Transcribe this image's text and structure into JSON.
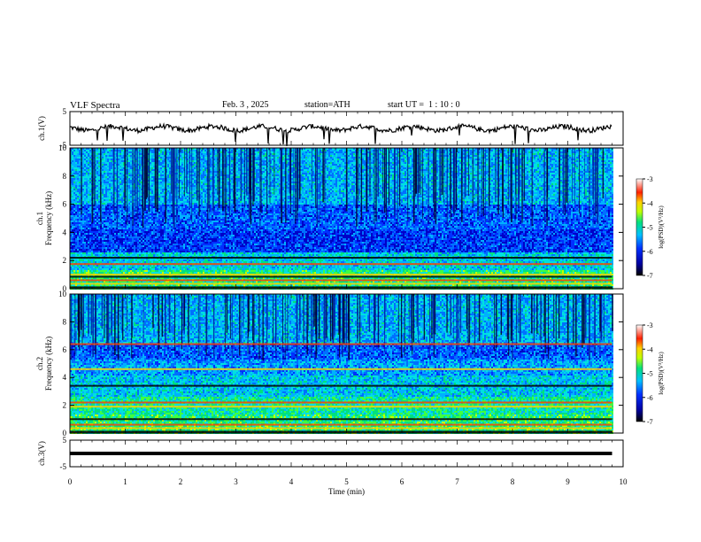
{
  "header": {
    "title": "VLF Spectra",
    "date": "Feb. 3 , 2025",
    "station": "station=ATH",
    "start_ut": "start UT =  1 : 10 : 0"
  },
  "chart_data": [
    {
      "type": "line",
      "name": "ch1-waveform",
      "ylabel": "ch.1(V)",
      "ylim": [
        -5,
        5
      ],
      "yticks": [
        "5",
        "-5"
      ],
      "xlim": [
        0,
        10
      ],
      "approx_level": 0,
      "data_end_min": 9.8
    },
    {
      "type": "heatmap",
      "name": "ch1-spectrogram",
      "ylabel": "ch.1\nFrequency (kHz)",
      "ylim": [
        0,
        10
      ],
      "yticks": [
        "0",
        "2",
        "4",
        "6",
        "8",
        "10"
      ],
      "xlim": [
        0,
        10
      ],
      "data_end_min": 9.8,
      "colorbar": {
        "label": "log(PSD)(V²/Hz)",
        "range": [
          -7,
          -3
        ],
        "ticks": [
          "-3",
          "-4",
          "-5",
          "-6",
          "-7"
        ]
      },
      "strong_bands_khz": [
        0.1,
        0.35,
        0.6,
        0.85,
        1.0,
        1.75,
        2.2
      ],
      "description_bands": {
        "low": "green/yellow",
        "mid": "blue",
        "high": "cyan-green with dark vertical streaks"
      }
    },
    {
      "type": "heatmap",
      "name": "ch2-spectrogram",
      "ylabel": "ch.2\nFrequency (kHz)",
      "ylim": [
        0,
        10
      ],
      "yticks": [
        "0",
        "2",
        "4",
        "6",
        "8",
        "10"
      ],
      "xlim": [
        0,
        10
      ],
      "data_end_min": 9.8,
      "colorbar": {
        "label": "log(PSD)(V²/Hz)",
        "range": [
          -7,
          -3
        ],
        "ticks": [
          "-3",
          "-4",
          "-5",
          "-6",
          "-7"
        ]
      },
      "strong_bands_khz": [
        0.1,
        0.35,
        0.6,
        1.0,
        1.9,
        2.2,
        3.4,
        4.6,
        6.4
      ]
    },
    {
      "type": "line",
      "name": "ch3-waveform",
      "ylabel": "ch.3(V)",
      "ylim": [
        -5,
        5
      ],
      "yticks": [
        "5",
        "-5"
      ],
      "xlim": [
        0,
        10
      ],
      "approx_level": 0,
      "data_end_min": 9.8
    }
  ],
  "xaxis": {
    "label": "Time (min)",
    "ticks": [
      "0",
      "1",
      "2",
      "3",
      "4",
      "5",
      "6",
      "7",
      "8",
      "9",
      "10"
    ]
  }
}
